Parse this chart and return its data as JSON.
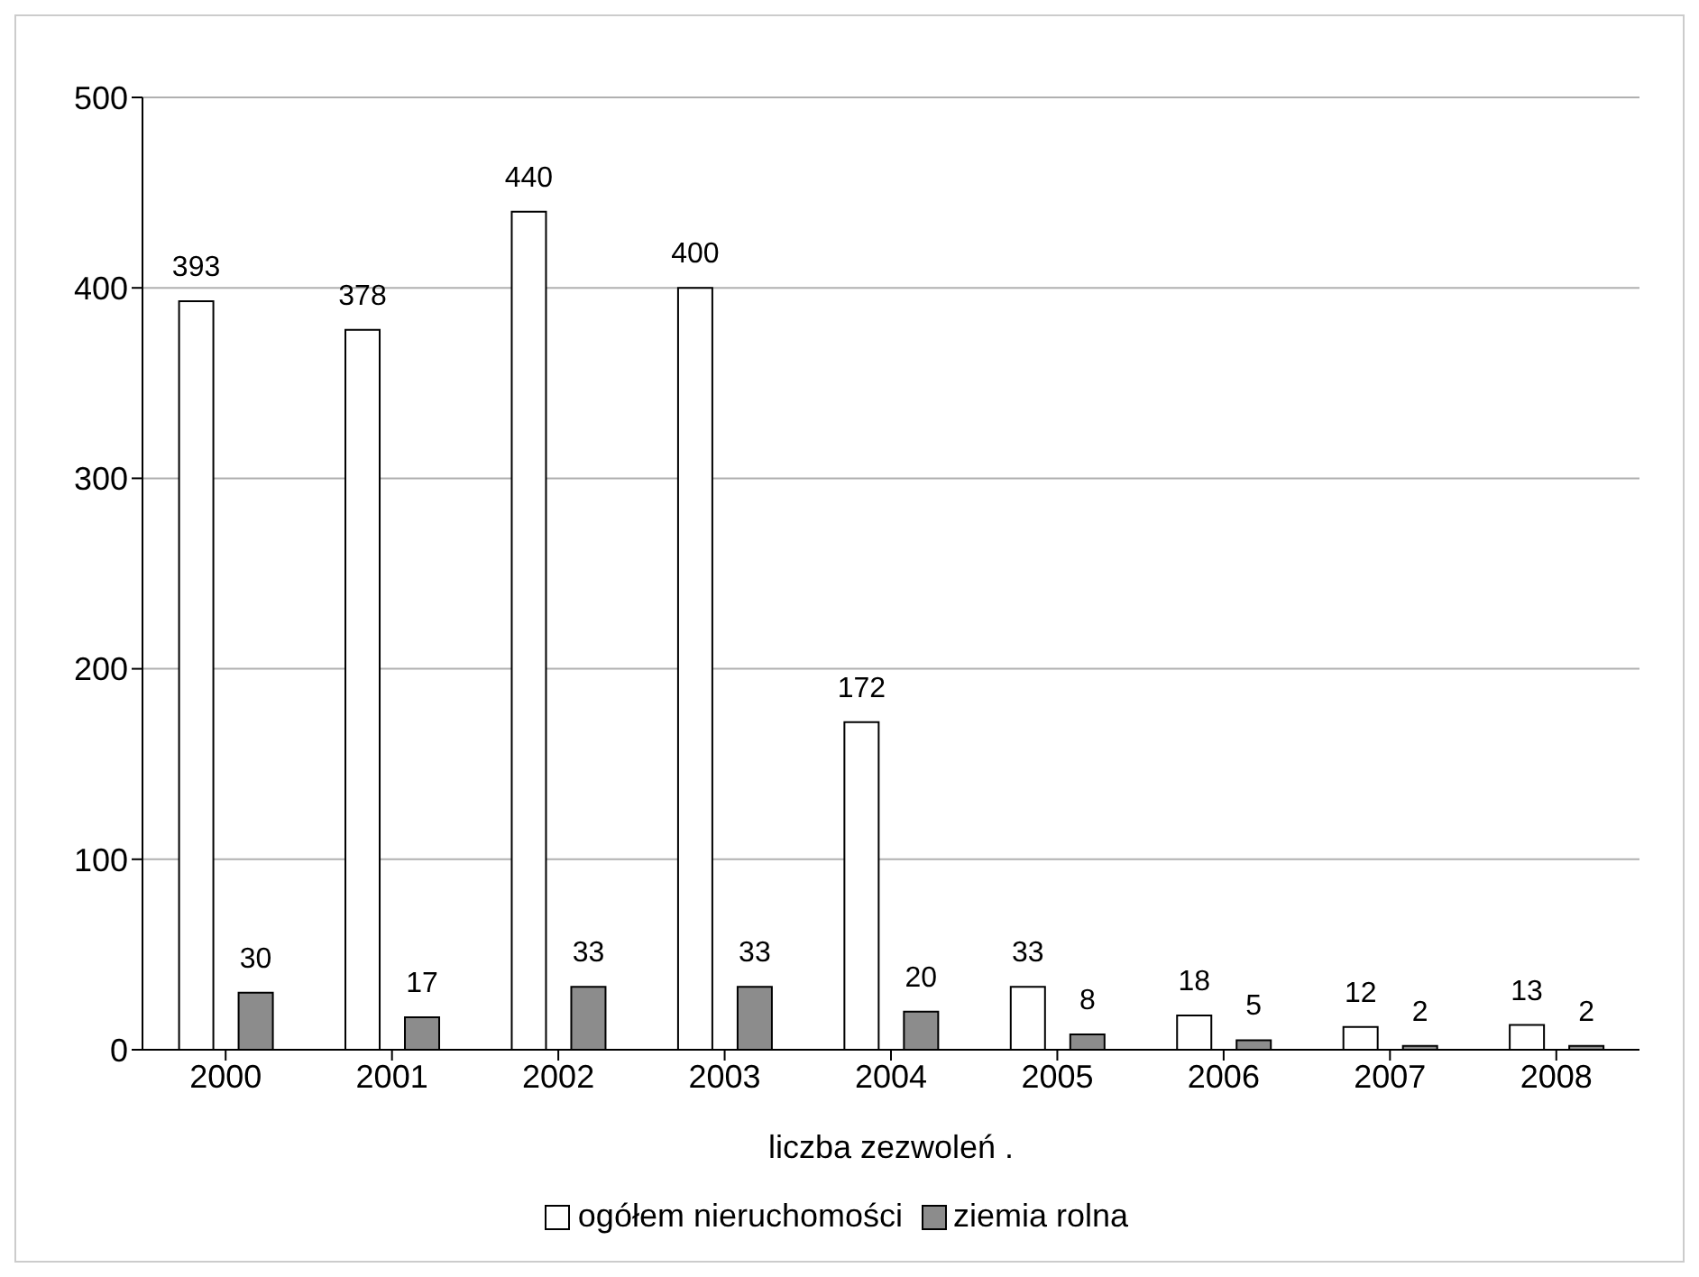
{
  "chart_data": {
    "type": "bar",
    "xlabel": "liczba zezwoleń  .",
    "categories": [
      "2000",
      "2001",
      "2002",
      "2003",
      "2004",
      "2005",
      "2006",
      "2007",
      "2008"
    ],
    "series": [
      {
        "name": "ogółem nieruchomości",
        "color": "#ffffff",
        "values": [
          393,
          378,
          440,
          400,
          172,
          33,
          18,
          12,
          13
        ]
      },
      {
        "name": "ziemia rolna",
        "color": "#8c8c8c",
        "values": [
          30,
          17,
          33,
          33,
          20,
          8,
          5,
          2,
          2
        ]
      }
    ],
    "ylim": [
      0,
      500
    ],
    "yticks": [
      0,
      100,
      200,
      300,
      400,
      500
    ],
    "grid": "y",
    "legend": "bottom",
    "data_labels": true
  }
}
